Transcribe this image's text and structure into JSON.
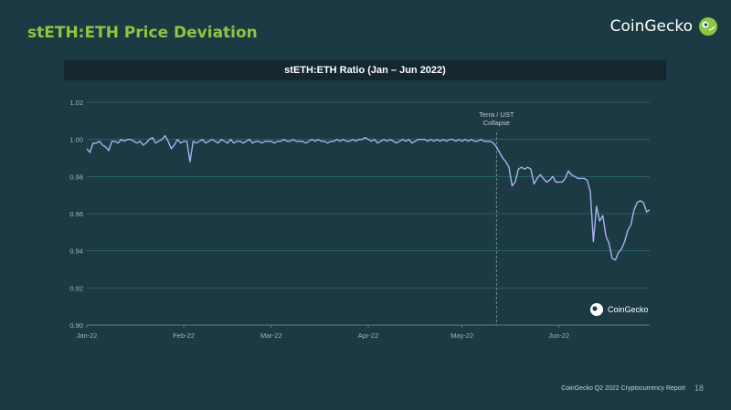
{
  "slide": {
    "title": "stETH:ETH Price Deviation",
    "brand": "CoinGecko",
    "footer": "CoinGecko Q2 2022 Cryptocurrency Report",
    "page_number": "18"
  },
  "colors": {
    "background": "#1c3a44",
    "title": "#8dc63f",
    "line": "#aab1f0",
    "grid": "#2a6b66",
    "header_bg": "#14272e"
  },
  "chart_data": {
    "type": "line",
    "title": "stETH:ETH Ratio (Jan – Jun 2022)",
    "xlabel": "",
    "ylabel": "",
    "x_ticks": [
      "Jan-22",
      "Feb-22",
      "Mar-22",
      "Apr-22",
      "May-22",
      "Jun-22"
    ],
    "x_range": [
      "2022-01-01",
      "2022-06-30"
    ],
    "ylim": [
      0.9,
      1.02
    ],
    "y_ticks": [
      "0.90",
      "0.92",
      "0.94",
      "0.96",
      "0.98",
      "1.00",
      "1.02"
    ],
    "grid": true,
    "watermark": "CoinGecko",
    "annotation": {
      "text": [
        "Terra / UST",
        "Collapse"
      ],
      "x": "2022-05-12"
    },
    "series": [
      {
        "points": [
          [
            "2022-01-01",
            0.995
          ],
          [
            "2022-01-02",
            0.993
          ],
          [
            "2022-01-03",
            0.998
          ],
          [
            "2022-01-04",
            0.998
          ],
          [
            "2022-01-05",
            0.999
          ],
          [
            "2022-01-06",
            0.997
          ],
          [
            "2022-01-07",
            0.996
          ],
          [
            "2022-01-08",
            0.994
          ],
          [
            "2022-01-09",
            0.999
          ],
          [
            "2022-01-10",
            0.999
          ],
          [
            "2022-01-11",
            0.998
          ],
          [
            "2022-01-12",
            1.0
          ],
          [
            "2022-01-13",
            0.999
          ],
          [
            "2022-01-14",
            1.0
          ],
          [
            "2022-01-15",
            1.0
          ],
          [
            "2022-01-16",
            0.999
          ],
          [
            "2022-01-17",
            0.998
          ],
          [
            "2022-01-18",
            0.999
          ],
          [
            "2022-01-19",
            0.997
          ],
          [
            "2022-01-20",
            0.998
          ],
          [
            "2022-01-21",
            1.0
          ],
          [
            "2022-01-22",
            1.001
          ],
          [
            "2022-01-23",
            0.998
          ],
          [
            "2022-01-24",
            0.999
          ],
          [
            "2022-01-25",
            1.0
          ],
          [
            "2022-01-26",
            1.002
          ],
          [
            "2022-01-27",
            0.999
          ],
          [
            "2022-01-28",
            0.995
          ],
          [
            "2022-01-29",
            0.997
          ],
          [
            "2022-01-30",
            1.0
          ],
          [
            "2022-01-31",
            0.998
          ],
          [
            "2022-02-01",
            0.999
          ],
          [
            "2022-02-02",
            0.999
          ],
          [
            "2022-02-03",
            0.988
          ],
          [
            "2022-02-04",
            0.999
          ],
          [
            "2022-02-05",
            0.998
          ],
          [
            "2022-02-06",
            0.999
          ],
          [
            "2022-02-07",
            1.0
          ],
          [
            "2022-02-08",
            0.998
          ],
          [
            "2022-02-09",
            0.999
          ],
          [
            "2022-02-10",
            1.0
          ],
          [
            "2022-02-11",
            0.999
          ],
          [
            "2022-02-12",
            0.998
          ],
          [
            "2022-02-13",
            1.0
          ],
          [
            "2022-02-14",
            0.999
          ],
          [
            "2022-02-15",
            0.998
          ],
          [
            "2022-02-16",
            1.0
          ],
          [
            "2022-02-17",
            0.998
          ],
          [
            "2022-02-18",
            0.999
          ],
          [
            "2022-02-19",
            0.999
          ],
          [
            "2022-02-20",
            0.998
          ],
          [
            "2022-02-21",
            0.999
          ],
          [
            "2022-02-22",
            1.0
          ],
          [
            "2022-02-23",
            0.998
          ],
          [
            "2022-02-24",
            0.999
          ],
          [
            "2022-02-25",
            0.999
          ],
          [
            "2022-02-26",
            0.998
          ],
          [
            "2022-02-27",
            0.999
          ],
          [
            "2022-02-28",
            0.999
          ],
          [
            "2022-03-01",
            0.999
          ],
          [
            "2022-03-02",
            0.998
          ],
          [
            "2022-03-03",
            0.999
          ],
          [
            "2022-03-04",
            0.999
          ],
          [
            "2022-03-05",
            1.0
          ],
          [
            "2022-03-06",
            0.999
          ],
          [
            "2022-03-07",
            0.999
          ],
          [
            "2022-03-08",
            1.0
          ],
          [
            "2022-03-09",
            0.999
          ],
          [
            "2022-03-10",
            0.999
          ],
          [
            "2022-03-11",
            0.999
          ],
          [
            "2022-03-12",
            0.998
          ],
          [
            "2022-03-13",
            0.999
          ],
          [
            "2022-03-14",
            1.0
          ],
          [
            "2022-03-15",
            0.999
          ],
          [
            "2022-03-16",
            1.0
          ],
          [
            "2022-03-17",
            0.999
          ],
          [
            "2022-03-18",
            0.999
          ],
          [
            "2022-03-19",
            0.998
          ],
          [
            "2022-03-20",
            0.999
          ],
          [
            "2022-03-21",
            0.999
          ],
          [
            "2022-03-22",
            1.0
          ],
          [
            "2022-03-23",
            0.999
          ],
          [
            "2022-03-24",
            1.0
          ],
          [
            "2022-03-25",
            0.999
          ],
          [
            "2022-03-26",
            0.999
          ],
          [
            "2022-03-27",
            1.0
          ],
          [
            "2022-03-28",
            0.999
          ],
          [
            "2022-03-29",
            1.0
          ],
          [
            "2022-03-30",
            1.0
          ],
          [
            "2022-03-31",
            1.001
          ],
          [
            "2022-04-01",
            1.0
          ],
          [
            "2022-04-02",
            0.999
          ],
          [
            "2022-04-03",
            1.0
          ],
          [
            "2022-04-04",
            0.998
          ],
          [
            "2022-04-05",
            0.999
          ],
          [
            "2022-04-06",
            1.0
          ],
          [
            "2022-04-07",
            0.999
          ],
          [
            "2022-04-08",
            1.0
          ],
          [
            "2022-04-09",
            0.999
          ],
          [
            "2022-04-10",
            0.998
          ],
          [
            "2022-04-11",
            0.999
          ],
          [
            "2022-04-12",
            1.0
          ],
          [
            "2022-04-13",
            0.999
          ],
          [
            "2022-04-14",
            1.0
          ],
          [
            "2022-04-15",
            0.998
          ],
          [
            "2022-04-16",
            0.999
          ],
          [
            "2022-04-17",
            1.0
          ],
          [
            "2022-04-18",
            1.0
          ],
          [
            "2022-04-19",
            1.0
          ],
          [
            "2022-04-20",
            0.999
          ],
          [
            "2022-04-21",
            1.0
          ],
          [
            "2022-04-22",
            0.999
          ],
          [
            "2022-04-23",
            1.0
          ],
          [
            "2022-04-24",
            0.999
          ],
          [
            "2022-04-25",
            1.0
          ],
          [
            "2022-04-26",
            0.999
          ],
          [
            "2022-04-27",
            1.0
          ],
          [
            "2022-04-28",
            1.0
          ],
          [
            "2022-04-29",
            0.999
          ],
          [
            "2022-04-30",
            1.0
          ],
          [
            "2022-05-01",
            0.999
          ],
          [
            "2022-05-02",
            1.0
          ],
          [
            "2022-05-03",
            0.999
          ],
          [
            "2022-05-04",
            1.0
          ],
          [
            "2022-05-05",
            0.999
          ],
          [
            "2022-05-06",
            0.999
          ],
          [
            "2022-05-07",
            1.0
          ],
          [
            "2022-05-08",
            0.999
          ],
          [
            "2022-05-09",
            0.999
          ],
          [
            "2022-05-10",
            0.999
          ],
          [
            "2022-05-11",
            0.998
          ],
          [
            "2022-05-12",
            0.996
          ],
          [
            "2022-05-13",
            0.993
          ],
          [
            "2022-05-14",
            0.99
          ],
          [
            "2022-05-15",
            0.988
          ],
          [
            "2022-05-16",
            0.985
          ],
          [
            "2022-05-17",
            0.975
          ],
          [
            "2022-05-18",
            0.977
          ],
          [
            "2022-05-19",
            0.984
          ],
          [
            "2022-05-20",
            0.985
          ],
          [
            "2022-05-21",
            0.984
          ],
          [
            "2022-05-22",
            0.985
          ],
          [
            "2022-05-23",
            0.984
          ],
          [
            "2022-05-24",
            0.976
          ],
          [
            "2022-05-25",
            0.979
          ],
          [
            "2022-05-26",
            0.981
          ],
          [
            "2022-05-27",
            0.979
          ],
          [
            "2022-05-28",
            0.977
          ],
          [
            "2022-05-29",
            0.978
          ],
          [
            "2022-05-30",
            0.98
          ],
          [
            "2022-05-31",
            0.977
          ],
          [
            "2022-06-01",
            0.977
          ],
          [
            "2022-06-02",
            0.977
          ],
          [
            "2022-06-03",
            0.979
          ],
          [
            "2022-06-04",
            0.983
          ],
          [
            "2022-06-05",
            0.981
          ],
          [
            "2022-06-06",
            0.98
          ],
          [
            "2022-06-07",
            0.979
          ],
          [
            "2022-06-08",
            0.979
          ],
          [
            "2022-06-09",
            0.979
          ],
          [
            "2022-06-10",
            0.978
          ],
          [
            "2022-06-11",
            0.972
          ],
          [
            "2022-06-12",
            0.945
          ],
          [
            "2022-06-13",
            0.964
          ],
          [
            "2022-06-14",
            0.956
          ],
          [
            "2022-06-15",
            0.959
          ],
          [
            "2022-06-16",
            0.948
          ],
          [
            "2022-06-17",
            0.944
          ],
          [
            "2022-06-18",
            0.936
          ],
          [
            "2022-06-19",
            0.935
          ],
          [
            "2022-06-20",
            0.939
          ],
          [
            "2022-06-21",
            0.941
          ],
          [
            "2022-06-22",
            0.945
          ],
          [
            "2022-06-23",
            0.951
          ],
          [
            "2022-06-24",
            0.954
          ],
          [
            "2022-06-25",
            0.962
          ],
          [
            "2022-06-26",
            0.966
          ],
          [
            "2022-06-27",
            0.967
          ],
          [
            "2022-06-28",
            0.966
          ],
          [
            "2022-06-29",
            0.961
          ],
          [
            "2022-06-30",
            0.962
          ]
        ]
      }
    ]
  }
}
